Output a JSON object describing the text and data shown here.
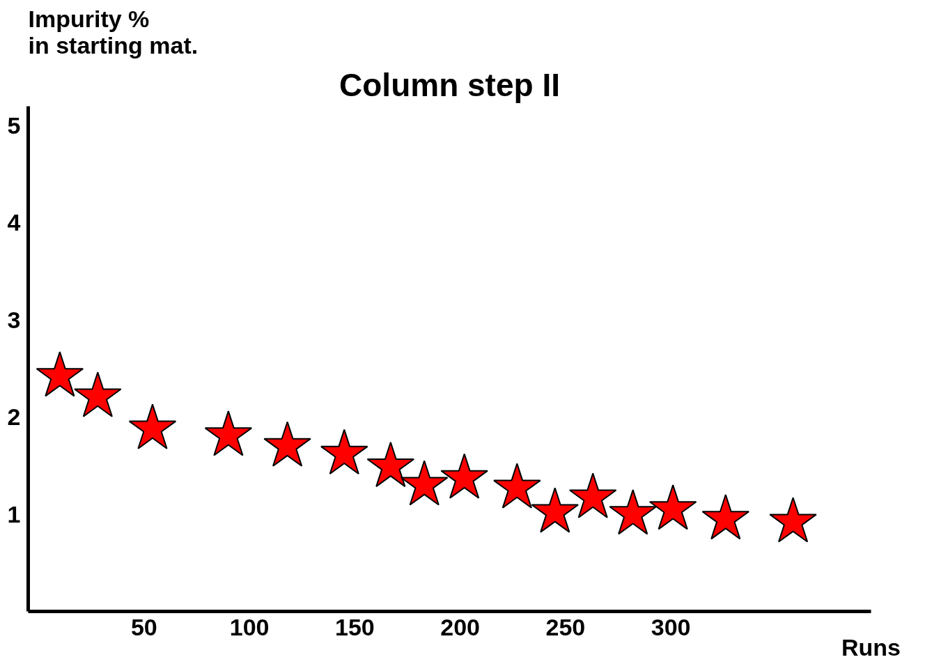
{
  "chart_data": {
    "type": "scatter",
    "title": "Column step II",
    "ylabel": "Impurity %\nin starting mat.",
    "xlabel": "Runs",
    "x": [
      10,
      28,
      54,
      90,
      118,
      145,
      167,
      183,
      202,
      227,
      245,
      263,
      282,
      301,
      326,
      358
    ],
    "series": [
      {
        "color": "#ff0000",
        "values": [
          2.42,
          2.21,
          1.88,
          1.81,
          1.7,
          1.62,
          1.49,
          1.3,
          1.37,
          1.27,
          1.02,
          1.17,
          1.0,
          1.05,
          0.95,
          0.92
        ]
      }
    ],
    "marker": "star",
    "grid": false,
    "xlim": [
      -5,
      395
    ],
    "ylim": [
      0,
      5.2
    ],
    "xticks": [
      50,
      100,
      150,
      200,
      250,
      300
    ],
    "yticks": [
      1,
      2,
      3,
      4,
      5
    ]
  }
}
